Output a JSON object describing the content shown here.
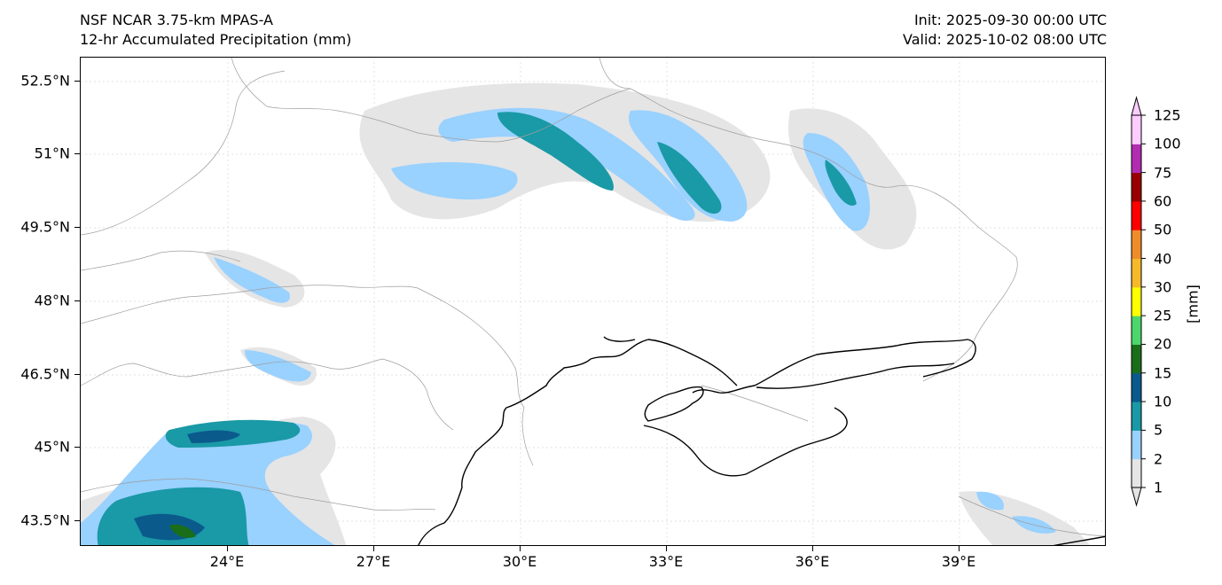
{
  "header": {
    "model": "NSF NCAR 3.75-km MPAS-A",
    "field": "12-hr Accumulated Precipitation (mm)",
    "init": "Init: 2025-09-30 00:00 UTC",
    "valid": "Valid: 2025-10-02 08:00 UTC"
  },
  "map": {
    "lat_ticks": [
      "52.5°N",
      "51°N",
      "49.5°N",
      "48°N",
      "46.5°N",
      "45°N",
      "43.5°N"
    ],
    "lon_ticks": [
      "24°E",
      "27°E",
      "30°E",
      "33°E",
      "36°E",
      "39°E"
    ],
    "lat_range": [
      43,
      53
    ],
    "lon_range": [
      21,
      42
    ],
    "gridlines": true
  },
  "colorbar": {
    "units": "[mm]",
    "levels": [
      "1",
      "2",
      "5",
      "10",
      "15",
      "20",
      "25",
      "30",
      "40",
      "50",
      "60",
      "75",
      "100",
      "125"
    ],
    "colors": [
      "#e5e5e5",
      "#99d1ff",
      "#1a99a6",
      "#0b5a8c",
      "#1a6e1a",
      "#4cd66b",
      "#ffff00",
      "#f5b92a",
      "#ef8c2a",
      "#ff0000",
      "#9a0000",
      "#b22cb2",
      "#ffccff"
    ],
    "extend": "both"
  }
}
